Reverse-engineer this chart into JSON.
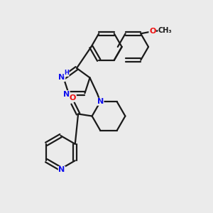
{
  "background_color": "#ebebeb",
  "bond_color": "#1a1a1a",
  "bond_width": 1.6,
  "dbo": 0.08,
  "atom_colors": {
    "N": "#1010ee",
    "O": "#ee1010",
    "C": "#1a1a1a",
    "H": "#1010ee"
  },
  "font_size": 7.5,
  "fig_size": [
    3.0,
    3.0
  ],
  "dpi": 100
}
